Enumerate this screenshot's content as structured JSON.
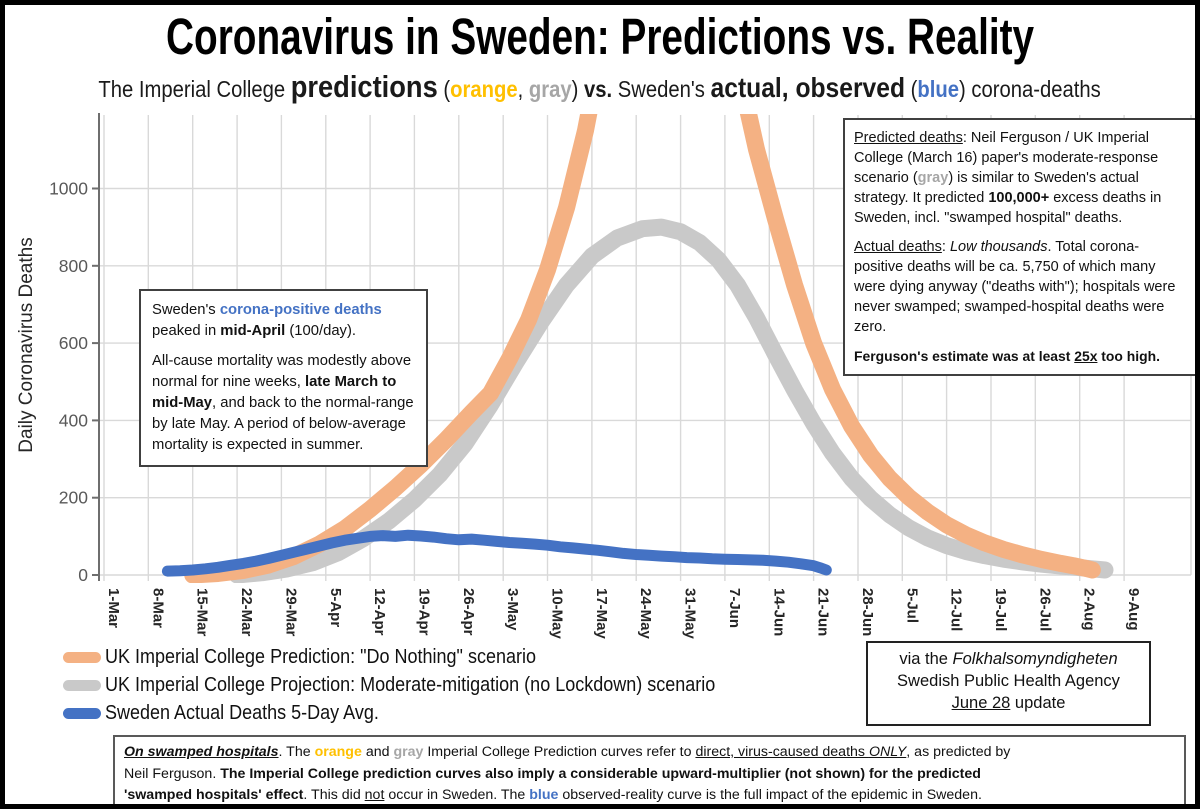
{
  "header": {
    "title": "Coronavirus in Sweden: Predictions vs. Reality",
    "subtitle": {
      "s1": "The Imperial College ",
      "s2": "predictions",
      "s3": " (",
      "s4": "orange",
      "s5": ", ",
      "s6": "gray",
      "s7": ") ",
      "s8": "vs. ",
      "s9": "Sweden's ",
      "s10": "actual, observed",
      "s11": " (",
      "s12": "blue",
      "s13": ") ",
      "s14": "corona-deaths"
    }
  },
  "colors": {
    "orange_curve": "#F4B183",
    "orange_text": "#FFC000",
    "gray_curve": "#C9C9C9",
    "gray_text": "#A6A6A6",
    "blue": "#4472C4",
    "gridline": "#D9D9D9",
    "axis": "#6E6E6E",
    "y_tick_label": "#595959",
    "x_tick_label": "#262626"
  },
  "annotation_left": {
    "p1_1": "Sweden's ",
    "p1_2": "corona-positive deaths",
    "p1_3": " peaked in ",
    "p1_4": "mid-April",
    "p1_5": " (100/day).",
    "p2_1": "All-cause mortality was modestly above normal for nine weeks, ",
    "p2_2": "late March to mid-May",
    "p2_3": ", and back to the normal-range by late May. A period of below-average mortality is expected in summer."
  },
  "annotation_right": {
    "p1_1": "Predicted deaths",
    "p1_2": ": Neil Ferguson / UK Imperial College (March 16) paper's moderate-response scenario (",
    "p1_3": "gray",
    "p1_4": ") is similar to Sweden's actual strategy. It predicted ",
    "p1_5": "100,000+",
    "p1_6": " excess deaths in Sweden, incl. \"swamped hospital\" deaths.",
    "p2_1": "Actual deaths",
    "p2_2": ": ",
    "p2_3": "Low thousands",
    "p2_4": ". Total corona-positive deaths will be ca. 5,750 of which many were dying anyway (\"deaths with\"); hospitals were never swamped; swamped-hospital deaths were zero.",
    "p3_1": "Ferguson's estimate was at least ",
    "p3_2": "25x",
    "p3_3": " too high."
  },
  "source_box": {
    "l1_1": "via the ",
    "l1_2": "Folkhalsomyndigheten",
    "l2": "Swedish Public Health Agency",
    "l3_1": "June 28",
    "l3_2": " update"
  },
  "footer_box": {
    "l1_1": "On swamped hospitals",
    "l1_2": ". The ",
    "l1_3": "orange",
    "l1_4": " and ",
    "l1_5": "gray",
    "l1_6": " Imperial College Prediction curves refer to ",
    "l1_7": "direct, virus-caused deaths ",
    "l1_8": "ONLY",
    "l1_9": ", as predicted by",
    "l2_1": "Neil Ferguson. ",
    "l2_2": "The Imperial College prediction curves also imply a considerable upward-multiplier (not shown) for the predicted",
    "l3_1": "'swamped hospitals' effect",
    "l3_2": ". This did ",
    "l3_3": "not",
    "l3_4": " occur in Sweden. The ",
    "l3_5": "blue",
    "l3_6": " observed-reality curve is the full impact of the epidemic in Sweden."
  },
  "chart_data": {
    "type": "line",
    "ylabel": "Daily Coronavirus Deaths",
    "yticks": [
      0,
      200,
      400,
      600,
      800,
      1000
    ],
    "ylim": [
      0,
      1190
    ],
    "grid": "on",
    "legend_position": "bottom-left",
    "x_axis": {
      "unit": "days since 1-Mar-2020",
      "tick_interval_days": 7,
      "tick_labels": [
        "1-Mar",
        "8-Mar",
        "15-Mar",
        "22-Mar",
        "29-Mar",
        "5-Apr",
        "12-Apr",
        "19-Apr",
        "26-Apr",
        "3-May",
        "10-May",
        "17-May",
        "24-May",
        "31-May",
        "7-Jun",
        "14-Jun",
        "21-Jun",
        "28-Jun",
        "5-Jul",
        "12-Jul",
        "19-Jul",
        "26-Jul",
        "2-Aug",
        "9-Aug"
      ]
    },
    "note": "points are [days_since_1-Mar, daily_deaths]; the two prediction curves exceed the chart top (clipped above ~1190)",
    "series": [
      {
        "name": "UK Imperial College Prediction: \"Do Nothing\" scenario",
        "color": "#F4B183",
        "width": 17,
        "points": [
          [
            14,
            0
          ],
          [
            18,
            4
          ],
          [
            22,
            12
          ],
          [
            26,
            26
          ],
          [
            30,
            48
          ],
          [
            34,
            80
          ],
          [
            38,
            120
          ],
          [
            42,
            170
          ],
          [
            46,
            225
          ],
          [
            50,
            285
          ],
          [
            54,
            350
          ],
          [
            58,
            420
          ],
          [
            61,
            470
          ],
          [
            64,
            560
          ],
          [
            67,
            660
          ],
          [
            70,
            790
          ],
          [
            73,
            950
          ],
          [
            76,
            1150
          ],
          [
            78,
            1320
          ],
          [
            82,
            1900
          ],
          [
            90,
            2800
          ],
          [
            97,
            1900
          ],
          [
            100,
            1320
          ],
          [
            103,
            1100
          ],
          [
            106,
            920
          ],
          [
            109,
            750
          ],
          [
            112,
            600
          ],
          [
            115,
            480
          ],
          [
            118,
            385
          ],
          [
            121,
            310
          ],
          [
            124,
            250
          ],
          [
            127,
            202
          ],
          [
            130,
            163
          ],
          [
            133,
            130
          ],
          [
            136,
            104
          ],
          [
            139,
            83
          ],
          [
            142,
            66
          ],
          [
            145,
            52
          ],
          [
            148,
            40
          ],
          [
            151,
            30
          ],
          [
            153,
            24
          ],
          [
            155,
            17
          ],
          [
            156,
            13
          ]
        ]
      },
      {
        "name": "UK Imperial College Projection: Moderate-mitigation (no Lockdown) scenario",
        "color": "#C9C9C9",
        "width": 17,
        "points": [
          [
            21,
            0
          ],
          [
            25,
            6
          ],
          [
            29,
            16
          ],
          [
            33,
            32
          ],
          [
            37,
            58
          ],
          [
            41,
            95
          ],
          [
            45,
            140
          ],
          [
            49,
            195
          ],
          [
            53,
            260
          ],
          [
            57,
            340
          ],
          [
            61,
            440
          ],
          [
            65,
            550
          ],
          [
            69,
            655
          ],
          [
            73,
            750
          ],
          [
            77,
            825
          ],
          [
            81,
            872
          ],
          [
            85,
            896
          ],
          [
            88,
            900
          ],
          [
            91,
            888
          ],
          [
            94,
            860
          ],
          [
            97,
            815
          ],
          [
            100,
            750
          ],
          [
            103,
            665
          ],
          [
            106,
            570
          ],
          [
            109,
            478
          ],
          [
            112,
            392
          ],
          [
            115,
            315
          ],
          [
            118,
            250
          ],
          [
            121,
            198
          ],
          [
            124,
            156
          ],
          [
            127,
            122
          ],
          [
            130,
            96
          ],
          [
            133,
            76
          ],
          [
            136,
            61
          ],
          [
            139,
            50
          ],
          [
            142,
            41
          ],
          [
            145,
            34
          ],
          [
            148,
            28
          ],
          [
            151,
            23
          ],
          [
            154,
            19
          ],
          [
            156,
            16
          ],
          [
            158,
            13
          ]
        ]
      },
      {
        "name": "Sweden Actual Deaths 5-Day Avg.",
        "color": "#4472C4",
        "width": 11,
        "points": [
          [
            10,
            10
          ],
          [
            12,
            11
          ],
          [
            14,
            13
          ],
          [
            16,
            16
          ],
          [
            18,
            20
          ],
          [
            20,
            25
          ],
          [
            22,
            30
          ],
          [
            24,
            36
          ],
          [
            26,
            43
          ],
          [
            28,
            51
          ],
          [
            30,
            59
          ],
          [
            32,
            67
          ],
          [
            34,
            75
          ],
          [
            36,
            83
          ],
          [
            38,
            90
          ],
          [
            40,
            95
          ],
          [
            42,
            100
          ],
          [
            44,
            102
          ],
          [
            46,
            100
          ],
          [
            48,
            103
          ],
          [
            50,
            101
          ],
          [
            52,
            98
          ],
          [
            54,
            94
          ],
          [
            56,
            91
          ],
          [
            58,
            93
          ],
          [
            60,
            90
          ],
          [
            62,
            87
          ],
          [
            64,
            84
          ],
          [
            66,
            82
          ],
          [
            68,
            80
          ],
          [
            70,
            77
          ],
          [
            72,
            73
          ],
          [
            74,
            70
          ],
          [
            76,
            67
          ],
          [
            78,
            64
          ],
          [
            80,
            60
          ],
          [
            82,
            56
          ],
          [
            84,
            53
          ],
          [
            86,
            51
          ],
          [
            88,
            49
          ],
          [
            90,
            47
          ],
          [
            92,
            45
          ],
          [
            94,
            44
          ],
          [
            96,
            42
          ],
          [
            98,
            41
          ],
          [
            100,
            40
          ],
          [
            102,
            39
          ],
          [
            104,
            38
          ],
          [
            106,
            36
          ],
          [
            108,
            33
          ],
          [
            110,
            29
          ],
          [
            112,
            24
          ],
          [
            113,
            19
          ],
          [
            114,
            13
          ]
        ]
      }
    ]
  }
}
